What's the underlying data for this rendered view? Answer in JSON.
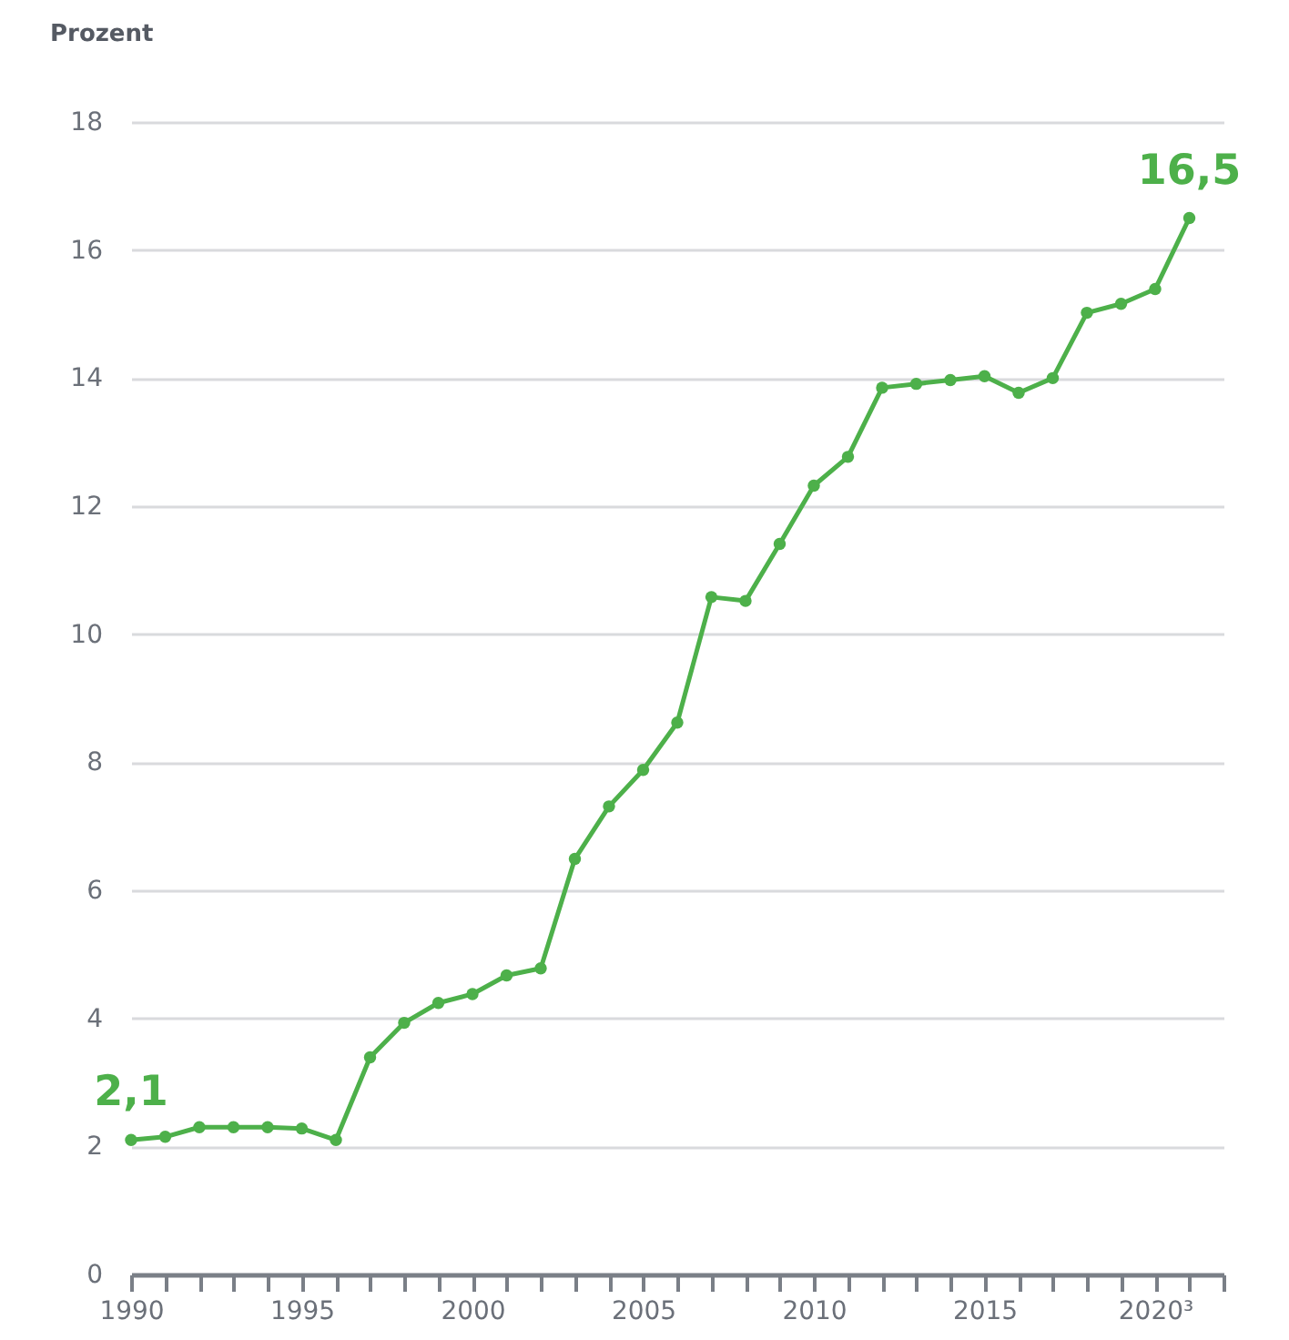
{
  "chart_data": {
    "type": "line",
    "ylabel": "Prozent",
    "x": [
      1990,
      1991,
      1992,
      1993,
      1994,
      1995,
      1996,
      1997,
      1998,
      1999,
      2000,
      2001,
      2002,
      2003,
      2004,
      2005,
      2006,
      2007,
      2008,
      2009,
      2010,
      2011,
      2012,
      2013,
      2014,
      2015,
      2016,
      2017,
      2018,
      2019,
      2020,
      2021
    ],
    "series": [
      {
        "color": "#4db04a",
        "values": [
          2.1,
          2.15,
          2.3,
          2.3,
          2.3,
          2.28,
          2.1,
          3.39,
          3.93,
          4.24,
          4.38,
          4.67,
          4.78,
          6.49,
          7.31,
          7.88,
          8.62,
          10.58,
          10.52,
          11.41,
          12.32,
          12.77,
          13.85,
          13.91,
          13.97,
          14.03,
          13.77,
          14.0,
          15.02,
          15.16,
          15.39,
          16.5
        ]
      }
    ],
    "annotations": [
      {
        "text": "2,1",
        "x": 1990,
        "y": 2.1
      },
      {
        "text": "16,5",
        "x": 2021,
        "y": 16.5
      }
    ],
    "xlim": [
      1990,
      2022
    ],
    "ylim": [
      0,
      18
    ],
    "xticks": [
      1990,
      {
        "value": 1991,
        "label": null
      },
      {
        "value": 1992,
        "label": null
      },
      {
        "value": 1993,
        "label": null
      },
      {
        "value": 1994,
        "label": null
      },
      1995,
      {
        "value": 1996,
        "label": null
      },
      {
        "value": 1997,
        "label": null
      },
      {
        "value": 1998,
        "label": null
      },
      {
        "value": 1999,
        "label": null
      },
      2000,
      {
        "value": 2001,
        "label": null
      },
      {
        "value": 2002,
        "label": null
      },
      {
        "value": 2003,
        "label": null
      },
      {
        "value": 2004,
        "label": null
      },
      2005,
      {
        "value": 2006,
        "label": null
      },
      {
        "value": 2007,
        "label": null
      },
      {
        "value": 2008,
        "label": null
      },
      {
        "value": 2009,
        "label": null
      },
      2010,
      {
        "value": 2011,
        "label": null
      },
      {
        "value": 2012,
        "label": null
      },
      {
        "value": 2013,
        "label": null
      },
      {
        "value": 2014,
        "label": null
      },
      2015,
      {
        "value": 2016,
        "label": null
      },
      {
        "value": 2017,
        "label": null
      },
      {
        "value": 2018,
        "label": null
      },
      {
        "value": 2019,
        "label": null
      },
      {
        "value": 2020,
        "label": "2020³"
      },
      {
        "value": 2021,
        "label": null
      },
      {
        "value": 2022,
        "label": null
      }
    ],
    "yticks": [
      0,
      2,
      4,
      6,
      8,
      10,
      12,
      14,
      16,
      18
    ],
    "grid": "y",
    "marker": "circle",
    "line_style": "solid"
  }
}
